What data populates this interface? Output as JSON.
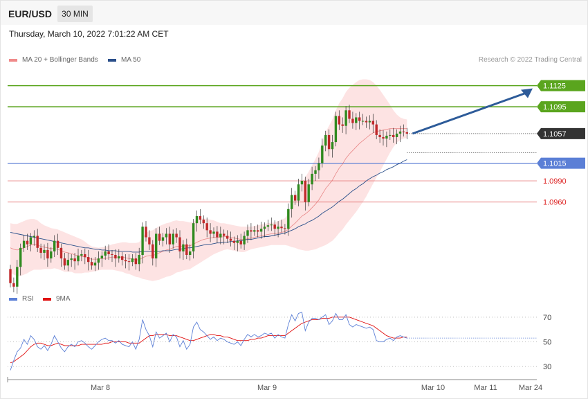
{
  "header": {
    "symbol": "EUR/USD",
    "timeframe": "30 MIN",
    "datetime": "Thursday, March 10, 2022 7:01:22 AM CET",
    "credit": "Research © 2022 Trading Central"
  },
  "legend_main": [
    {
      "label": "MA 20 + Bollinger Bands",
      "color": "#f08a8a"
    },
    {
      "label": "MA 50",
      "color": "#2a4f8a"
    }
  ],
  "legend_rsi": [
    {
      "label": "RSI",
      "color": "#5b7fd6"
    },
    {
      "label": "9MA",
      "color": "#e01010"
    }
  ],
  "colors": {
    "up": "#2f8a1f",
    "down": "#c0282a",
    "resistance": "#5aa51e",
    "support": "#5b7fd6",
    "red_level": "#e06060",
    "current": "#333333",
    "band_fill": "#fde3e3",
    "arrow": "#2d5b99"
  },
  "chart_data": [
    {
      "type": "candlestick",
      "title": "",
      "price_range": [
        1.083,
        1.116
      ],
      "x_labels": [
        "Mar 8",
        "Mar 9",
        "Mar 10",
        "Mar 11",
        "Mar 24"
      ],
      "current_price": "1.1057",
      "levels": [
        {
          "label": "1.1125",
          "value": 1.1125,
          "kind": "resistance",
          "style": "tag"
        },
        {
          "label": "1.1095",
          "value": 1.1095,
          "kind": "resistance",
          "style": "tag"
        },
        {
          "label": "1.1015",
          "value": 1.1015,
          "kind": "support",
          "style": "tag"
        },
        {
          "label": "1.0990",
          "value": 1.099,
          "kind": "pivot",
          "style": "text"
        },
        {
          "label": "1.0960",
          "value": 1.096,
          "kind": "pivot",
          "style": "text"
        }
      ],
      "close": [
        1.0845,
        1.084,
        1.0868,
        1.0895,
        1.0905,
        1.09,
        1.091,
        1.0912,
        1.0895,
        1.0888,
        1.0892,
        1.088,
        1.089,
        1.0905,
        1.0895,
        1.088,
        1.087,
        1.0878,
        1.088,
        1.0876,
        1.0884,
        1.0886,
        1.0882,
        1.0875,
        1.087,
        1.0874,
        1.088,
        1.0884,
        1.089,
        1.0886,
        1.0885,
        1.088,
        1.0883,
        1.0878,
        1.0876,
        1.0875,
        1.088,
        1.0872,
        1.0885,
        1.0925,
        1.091,
        1.09,
        1.088,
        1.0915,
        1.0905,
        1.091,
        1.0915,
        1.09,
        1.0915,
        1.091,
        1.089,
        1.09,
        1.0885,
        1.089,
        1.093,
        1.094,
        1.0935,
        1.093,
        1.092,
        1.0915,
        1.0918,
        1.091,
        1.0915,
        1.0912,
        1.0908,
        1.0905,
        1.0902,
        1.0905,
        1.09,
        1.0912,
        1.092,
        1.0918,
        1.092,
        1.0918,
        1.0922,
        1.0925,
        1.0927,
        1.0928,
        1.0922,
        1.0925,
        1.0923,
        1.0922,
        1.095,
        1.097,
        1.0962,
        1.0985,
        1.099,
        1.096,
        1.0985,
        1.1,
        1.1005,
        1.1015,
        1.104,
        1.1055,
        1.1035,
        1.1045,
        1.1082,
        1.107,
        1.1068,
        1.109,
        1.1078,
        1.1072,
        1.108,
        1.1075,
        1.1075,
        1.1073,
        1.1075,
        1.107,
        1.1055,
        1.1052,
        1.105,
        1.1054,
        1.1055,
        1.1052,
        1.1057,
        1.106,
        1.1059,
        1.1057
      ],
      "ma20": [
        1.0895,
        1.0893,
        1.0892,
        1.0893,
        1.0895,
        1.0897,
        1.0899,
        1.09,
        1.0899,
        1.0897,
        1.0896,
        1.0895,
        1.0894,
        1.0894,
        1.0893,
        1.0891,
        1.0889,
        1.0888,
        1.0887,
        1.0885,
        1.0884,
        1.0883,
        1.0882,
        1.088,
        1.0879,
        1.0879,
        1.0879,
        1.088,
        1.088,
        1.0881,
        1.0882,
        1.0882,
        1.0882,
        1.0882,
        1.0881,
        1.088,
        1.0879,
        1.0878,
        1.0878,
        1.0881,
        1.0883,
        1.0884,
        1.0884,
        1.0886,
        1.0888,
        1.089,
        1.0892,
        1.0893,
        1.0895,
        1.0897,
        1.0897,
        1.0898,
        1.0898,
        1.0898,
        1.09,
        1.0903,
        1.0905,
        1.0907,
        1.0908,
        1.0909,
        1.091,
        1.091,
        1.091,
        1.0911,
        1.0911,
        1.091,
        1.0909,
        1.0908,
        1.0907,
        1.0907,
        1.0908,
        1.0909,
        1.091,
        1.0911,
        1.0912,
        1.0913,
        1.0914,
        1.0915,
        1.0915,
        1.0916,
        1.0917,
        1.0918,
        1.0921,
        1.0926,
        1.093,
        1.0935,
        1.094,
        1.0943,
        1.0947,
        1.0952,
        1.0957,
        1.0963,
        1.0971,
        1.0979,
        1.0985,
        1.0991,
        1.1,
        1.1008,
        1.1014,
        1.1022,
        1.1028,
        1.1033,
        1.1038,
        1.1043,
        1.1047,
        1.1051,
        1.1055,
        1.1058,
        1.106,
        1.1061,
        1.1062,
        1.1063,
        1.1064,
        1.1064,
        1.1064,
        1.1064,
        1.1064,
        1.1064
      ],
      "ma50": [
        1.0917,
        1.0916,
        1.0915,
        1.0914,
        1.0913,
        1.0912,
        1.0911,
        1.091,
        1.0909,
        1.0908,
        1.0907,
        1.0906,
        1.0905,
        1.0904,
        1.0903,
        1.0902,
        1.0901,
        1.09,
        1.0899,
        1.0898,
        1.0897,
        1.0896,
        1.0895,
        1.0895,
        1.0894,
        1.0893,
        1.0893,
        1.0892,
        1.0892,
        1.0891,
        1.0891,
        1.0891,
        1.089,
        1.089,
        1.089,
        1.089,
        1.0889,
        1.0889,
        1.0889,
        1.089,
        1.089,
        1.089,
        1.089,
        1.089,
        1.089,
        1.0891,
        1.0891,
        1.0891,
        1.0892,
        1.0893,
        1.0893,
        1.0894,
        1.0895,
        1.0895,
        1.0896,
        1.0897,
        1.0898,
        1.0899,
        1.09,
        1.09,
        1.0901,
        1.0902,
        1.0902,
        1.0903,
        1.0903,
        1.0904,
        1.0904,
        1.0905,
        1.0905,
        1.0906,
        1.0907,
        1.0907,
        1.0908,
        1.0909,
        1.091,
        1.0911,
        1.0911,
        1.0912,
        1.0913,
        1.0914,
        1.0915,
        1.0916,
        1.0918,
        1.092,
        1.0922,
        1.0925,
        1.0927,
        1.0929,
        1.0932,
        1.0934,
        1.0937,
        1.094,
        1.0944,
        1.0947,
        1.095,
        1.0953,
        1.0957,
        1.0961,
        1.0964,
        1.0968,
        1.0972,
        1.0976,
        1.0979,
        1.0983,
        1.0986,
        1.099,
        1.0993,
        1.0996,
        1.0998,
        1.1001,
        1.1003,
        1.1006,
        1.1008,
        1.101,
        1.1013,
        1.1015,
        1.1018,
        1.102
      ],
      "band_halfwidth": [
        0.0035,
        0.0036,
        0.0037,
        0.0038,
        0.0038,
        0.0038,
        0.0037,
        0.0036,
        0.0035,
        0.0033,
        0.0031,
        0.003,
        0.0029,
        0.0028,
        0.0028,
        0.0028,
        0.0028,
        0.0027,
        0.0026,
        0.0026,
        0.0025,
        0.0024,
        0.0022,
        0.002,
        0.0018,
        0.0017,
        0.0016,
        0.0016,
        0.0016,
        0.0017,
        0.0018,
        0.0019,
        0.002,
        0.0021,
        0.0022,
        0.0022,
        0.0023,
        0.0024,
        0.0025,
        0.003,
        0.0033,
        0.0035,
        0.0036,
        0.0037,
        0.0038,
        0.0038,
        0.0038,
        0.0038,
        0.0038,
        0.0037,
        0.0036,
        0.0035,
        0.0034,
        0.0033,
        0.0032,
        0.0032,
        0.0031,
        0.003,
        0.0028,
        0.0026,
        0.0024,
        0.0022,
        0.002,
        0.0019,
        0.0018,
        0.0018,
        0.0018,
        0.0018,
        0.0018,
        0.0018,
        0.0017,
        0.0016,
        0.0016,
        0.0016,
        0.0016,
        0.0016,
        0.0016,
        0.0016,
        0.0016,
        0.0017,
        0.0018,
        0.0019,
        0.0023,
        0.003,
        0.0035,
        0.0042,
        0.0048,
        0.0052,
        0.0056,
        0.006,
        0.0064,
        0.0068,
        0.0074,
        0.008,
        0.0083,
        0.0086,
        0.009,
        0.0092,
        0.0093,
        0.0094,
        0.0094,
        0.0093,
        0.0092,
        0.009,
        0.0087,
        0.0083,
        0.0078,
        0.0072,
        0.0065,
        0.0058,
        0.005,
        0.0042,
        0.0034,
        0.0026,
        0.002,
        0.0016,
        0.0014,
        0.0013
      ]
    },
    {
      "type": "line",
      "title": "RSI",
      "ylim": [
        20,
        80
      ],
      "y_ticks": [
        70,
        50,
        30
      ],
      "series": [
        {
          "name": "RSI",
          "values": [
            27,
            35,
            42,
            45,
            52,
            48,
            55,
            52,
            46,
            44,
            47,
            43,
            48,
            55,
            50,
            45,
            42,
            46,
            48,
            46,
            50,
            51,
            49,
            46,
            44,
            47,
            50,
            52,
            53,
            51,
            51,
            49,
            51,
            48,
            47,
            46,
            50,
            44,
            52,
            68,
            60,
            55,
            46,
            58,
            53,
            55,
            57,
            50,
            56,
            54,
            46,
            51,
            44,
            48,
            62,
            66,
            60,
            58,
            55,
            52,
            54,
            51,
            53,
            52,
            50,
            49,
            48,
            50,
            47,
            52,
            56,
            54,
            56,
            54,
            55,
            57,
            56,
            57,
            53,
            56,
            54,
            53,
            64,
            72,
            67,
            73,
            74,
            59,
            66,
            69,
            69,
            68,
            70,
            72,
            64,
            67,
            73,
            68,
            68,
            72,
            64,
            62,
            64,
            63,
            62,
            61,
            62,
            60,
            51,
            50,
            50,
            52,
            53,
            51,
            54,
            55,
            54,
            53
          ]
        },
        {
          "name": "9MA",
          "values": [
            33,
            34,
            36,
            38,
            40,
            43,
            46,
            48,
            49,
            49,
            48,
            47,
            47,
            48,
            49,
            48,
            47,
            47,
            47,
            47,
            47,
            48,
            48,
            48,
            48,
            48,
            48,
            48,
            49,
            49,
            50,
            50,
            50,
            50,
            50,
            49,
            49,
            49,
            49,
            51,
            53,
            55,
            55,
            56,
            56,
            56,
            56,
            55,
            55,
            55,
            54,
            53,
            52,
            51,
            51,
            52,
            53,
            54,
            55,
            56,
            56,
            55,
            55,
            54,
            54,
            53,
            52,
            51,
            51,
            51,
            51,
            52,
            52,
            53,
            53,
            54,
            55,
            55,
            55,
            55,
            55,
            55,
            57,
            59,
            61,
            63,
            65,
            66,
            67,
            68,
            68,
            68,
            69,
            69,
            69,
            70,
            70,
            70,
            70,
            70,
            70,
            69,
            68,
            67,
            66,
            65,
            64,
            63,
            61,
            59,
            57,
            55,
            54,
            53,
            53,
            53,
            54,
            54
          ]
        }
      ]
    }
  ]
}
